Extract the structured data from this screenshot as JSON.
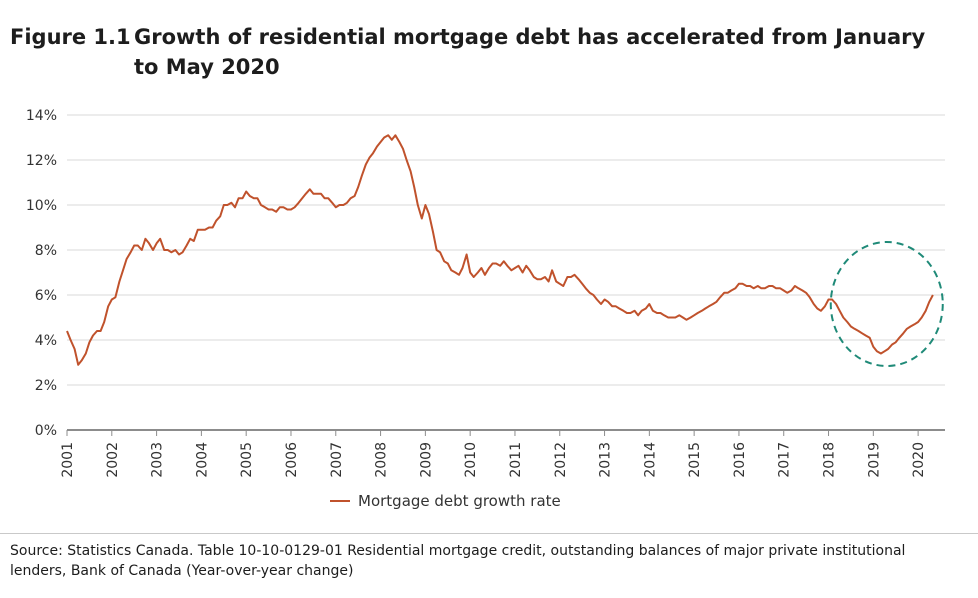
{
  "figure": {
    "number": "Figure 1.1",
    "title": "Growth of residential mortgage debt has accelerated from January to May 2020"
  },
  "source_note": "Source: Statistics Canada.  Table  10-10-0129-01   Residential mortgage credit, outstanding balances of major private institutional lenders, Bank of Canada (Year-over-year change)",
  "colors": {
    "line": "#c0522c",
    "circle": "#1f8a78",
    "grid": "#d9d9d9",
    "axis": "#8c8c8c"
  },
  "chart_data": {
    "type": "line",
    "title": "",
    "xlabel": "",
    "ylabel": "",
    "xlim": [
      2001,
      2020.6
    ],
    "ylim": [
      0,
      14
    ],
    "y_ticks": [
      "0%",
      "2%",
      "4%",
      "6%",
      "8%",
      "10%",
      "12%",
      "14%"
    ],
    "x_ticks": [
      "2001",
      "2002",
      "2003",
      "2004",
      "2005",
      "2006",
      "2007",
      "2008",
      "2009",
      "2010",
      "2011",
      "2012",
      "2013",
      "2014",
      "2015",
      "2016",
      "2017",
      "2018",
      "2019",
      "2020"
    ],
    "grid": "horizontal",
    "legend": "bottom-center",
    "annotations": [
      "dashed circle highlighting 2018–2020 trough and rebound"
    ],
    "series": [
      {
        "name": "Mortgage debt growth rate",
        "x": [
          2001.0,
          2001.08,
          2001.17,
          2001.25,
          2001.33,
          2001.42,
          2001.5,
          2001.58,
          2001.67,
          2001.75,
          2001.83,
          2001.92,
          2002.0,
          2002.08,
          2002.17,
          2002.25,
          2002.33,
          2002.42,
          2002.5,
          2002.58,
          2002.67,
          2002.75,
          2002.83,
          2002.92,
          2003.0,
          2003.08,
          2003.17,
          2003.25,
          2003.33,
          2003.42,
          2003.5,
          2003.58,
          2003.67,
          2003.75,
          2003.83,
          2003.92,
          2004.0,
          2004.08,
          2004.17,
          2004.25,
          2004.33,
          2004.42,
          2004.5,
          2004.58,
          2004.67,
          2004.75,
          2004.83,
          2004.92,
          2005.0,
          2005.08,
          2005.17,
          2005.25,
          2005.33,
          2005.42,
          2005.5,
          2005.58,
          2005.67,
          2005.75,
          2005.83,
          2005.92,
          2006.0,
          2006.08,
          2006.17,
          2006.25,
          2006.33,
          2006.42,
          2006.5,
          2006.58,
          2006.67,
          2006.75,
          2006.83,
          2006.92,
          2007.0,
          2007.08,
          2007.17,
          2007.25,
          2007.33,
          2007.42,
          2007.5,
          2007.58,
          2007.67,
          2007.75,
          2007.83,
          2007.92,
          2008.0,
          2008.08,
          2008.17,
          2008.25,
          2008.33,
          2008.42,
          2008.5,
          2008.58,
          2008.67,
          2008.75,
          2008.83,
          2008.92,
          2009.0,
          2009.08,
          2009.17,
          2009.25,
          2009.33,
          2009.42,
          2009.5,
          2009.58,
          2009.67,
          2009.75,
          2009.83,
          2009.92,
          2010.0,
          2010.08,
          2010.17,
          2010.25,
          2010.33,
          2010.42,
          2010.5,
          2010.58,
          2010.67,
          2010.75,
          2010.83,
          2010.92,
          2011.0,
          2011.08,
          2011.17,
          2011.25,
          2011.33,
          2011.42,
          2011.5,
          2011.58,
          2011.67,
          2011.75,
          2011.83,
          2011.92,
          2012.0,
          2012.08,
          2012.17,
          2012.25,
          2012.33,
          2012.42,
          2012.5,
          2012.58,
          2012.67,
          2012.75,
          2012.83,
          2012.92,
          2013.0,
          2013.08,
          2013.17,
          2013.25,
          2013.33,
          2013.42,
          2013.5,
          2013.58,
          2013.67,
          2013.75,
          2013.83,
          2013.92,
          2014.0,
          2014.08,
          2014.17,
          2014.25,
          2014.33,
          2014.42,
          2014.5,
          2014.58,
          2014.67,
          2014.75,
          2014.83,
          2014.92,
          2015.0,
          2015.08,
          2015.17,
          2015.25,
          2015.33,
          2015.42,
          2015.5,
          2015.58,
          2015.67,
          2015.75,
          2015.83,
          2015.92,
          2016.0,
          2016.08,
          2016.17,
          2016.25,
          2016.33,
          2016.42,
          2016.5,
          2016.58,
          2016.67,
          2016.75,
          2016.83,
          2016.92,
          2017.0,
          2017.08,
          2017.17,
          2017.25,
          2017.33,
          2017.42,
          2017.5,
          2017.58,
          2017.67,
          2017.75,
          2017.83,
          2017.92,
          2018.0,
          2018.08,
          2018.17,
          2018.25,
          2018.33,
          2018.42,
          2018.5,
          2018.58,
          2018.67,
          2018.75,
          2018.83,
          2018.92,
          2019.0,
          2019.08,
          2019.17,
          2019.25,
          2019.33,
          2019.42,
          2019.5,
          2019.58,
          2019.67,
          2019.75,
          2019.83,
          2019.92,
          2020.0,
          2020.08,
          2020.17,
          2020.25,
          2020.33
        ],
        "values": [
          4.4,
          4.0,
          3.6,
          2.9,
          3.1,
          3.4,
          3.9,
          4.2,
          4.4,
          4.4,
          4.8,
          5.5,
          5.8,
          5.9,
          6.6,
          7.1,
          7.6,
          7.9,
          8.2,
          8.2,
          8.0,
          8.5,
          8.3,
          8.0,
          8.3,
          8.5,
          8.0,
          8.0,
          7.9,
          8.0,
          7.8,
          7.9,
          8.2,
          8.5,
          8.4,
          8.9,
          8.9,
          8.9,
          9.0,
          9.0,
          9.3,
          9.5,
          10.0,
          10.0,
          10.1,
          9.9,
          10.3,
          10.3,
          10.6,
          10.4,
          10.3,
          10.3,
          10.0,
          9.9,
          9.8,
          9.8,
          9.7,
          9.9,
          9.9,
          9.8,
          9.8,
          9.9,
          10.1,
          10.3,
          10.5,
          10.7,
          10.5,
          10.5,
          10.5,
          10.3,
          10.3,
          10.1,
          9.9,
          10.0,
          10.0,
          10.1,
          10.3,
          10.4,
          10.8,
          11.3,
          11.8,
          12.1,
          12.3,
          12.6,
          12.8,
          13.0,
          13.1,
          12.9,
          13.1,
          12.8,
          12.5,
          12.0,
          11.5,
          10.8,
          10.0,
          9.4,
          10.0,
          9.6,
          8.8,
          8.0,
          7.9,
          7.5,
          7.4,
          7.1,
          7.0,
          6.9,
          7.2,
          7.8,
          7.0,
          6.8,
          7.0,
          7.2,
          6.9,
          7.2,
          7.4,
          7.4,
          7.3,
          7.5,
          7.3,
          7.1,
          7.2,
          7.3,
          7.0,
          7.3,
          7.1,
          6.8,
          6.7,
          6.7,
          6.8,
          6.6,
          7.1,
          6.6,
          6.5,
          6.4,
          6.8,
          6.8,
          6.9,
          6.7,
          6.5,
          6.3,
          6.1,
          6.0,
          5.8,
          5.6,
          5.8,
          5.7,
          5.5,
          5.5,
          5.4,
          5.3,
          5.2,
          5.2,
          5.3,
          5.1,
          5.3,
          5.4,
          5.6,
          5.3,
          5.2,
          5.2,
          5.1,
          5.0,
          5.0,
          5.0,
          5.1,
          5.0,
          4.9,
          5.0,
          5.1,
          5.2,
          5.3,
          5.4,
          5.5,
          5.6,
          5.7,
          5.9,
          6.1,
          6.1,
          6.2,
          6.3,
          6.5,
          6.5,
          6.4,
          6.4,
          6.3,
          6.4,
          6.3,
          6.3,
          6.4,
          6.4,
          6.3,
          6.3,
          6.2,
          6.1,
          6.2,
          6.4,
          6.3,
          6.2,
          6.1,
          5.9,
          5.6,
          5.4,
          5.3,
          5.5,
          5.8,
          5.8,
          5.6,
          5.3,
          5.0,
          4.8,
          4.6,
          4.5,
          4.4,
          4.3,
          4.2,
          4.1,
          3.7,
          3.5,
          3.4,
          3.5,
          3.6,
          3.8,
          3.9,
          4.1,
          4.3,
          4.5,
          4.6,
          4.7,
          4.8,
          5.0,
          5.3,
          5.7,
          6.0
        ]
      }
    ]
  }
}
